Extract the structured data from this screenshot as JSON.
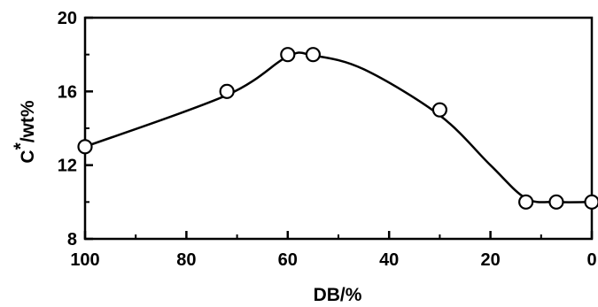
{
  "chart_data": {
    "type": "scatter",
    "xlabel": "DB/%",
    "ylabel": "C*/wt%",
    "ylabel_main": "C",
    "ylabel_sup": "*",
    "ylabel_rest": "/wt%",
    "xlim": [
      100,
      0
    ],
    "ylim": [
      8,
      20
    ],
    "x_reversed": true,
    "xticks": [
      100,
      80,
      60,
      40,
      20,
      0
    ],
    "xtick_labels": [
      "100",
      "80",
      "60",
      "40",
      "20",
      "0"
    ],
    "xminor": [
      90,
      70,
      50,
      30,
      10
    ],
    "yticks": [
      8,
      12,
      16,
      20
    ],
    "ytick_labels": [
      "8",
      "12",
      "16",
      "20"
    ],
    "yminor": [
      10,
      14,
      18
    ],
    "grid": false,
    "series": [
      {
        "marker": "open-circle",
        "points": [
          {
            "x": 100,
            "y": 13.0
          },
          {
            "x": 72,
            "y": 16.0
          },
          {
            "x": 60,
            "y": 18.0
          },
          {
            "x": 55,
            "y": 18.0
          },
          {
            "x": 30,
            "y": 15.0
          },
          {
            "x": 13,
            "y": 10.0
          },
          {
            "x": 7,
            "y": 10.0
          },
          {
            "x": 0,
            "y": 10.0
          }
        ]
      }
    ],
    "fit_curve": {
      "style": "smooth-line",
      "points": [
        {
          "x": 100,
          "y": 13.0
        },
        {
          "x": 72,
          "y": 15.8
        },
        {
          "x": 60,
          "y": 17.9
        },
        {
          "x": 55,
          "y": 17.95
        },
        {
          "x": 45,
          "y": 17.2
        },
        {
          "x": 30,
          "y": 14.7
        },
        {
          "x": 20,
          "y": 12.0
        },
        {
          "x": 13,
          "y": 10.2
        },
        {
          "x": 7,
          "y": 10.0
        },
        {
          "x": 0,
          "y": 10.0
        }
      ]
    }
  }
}
